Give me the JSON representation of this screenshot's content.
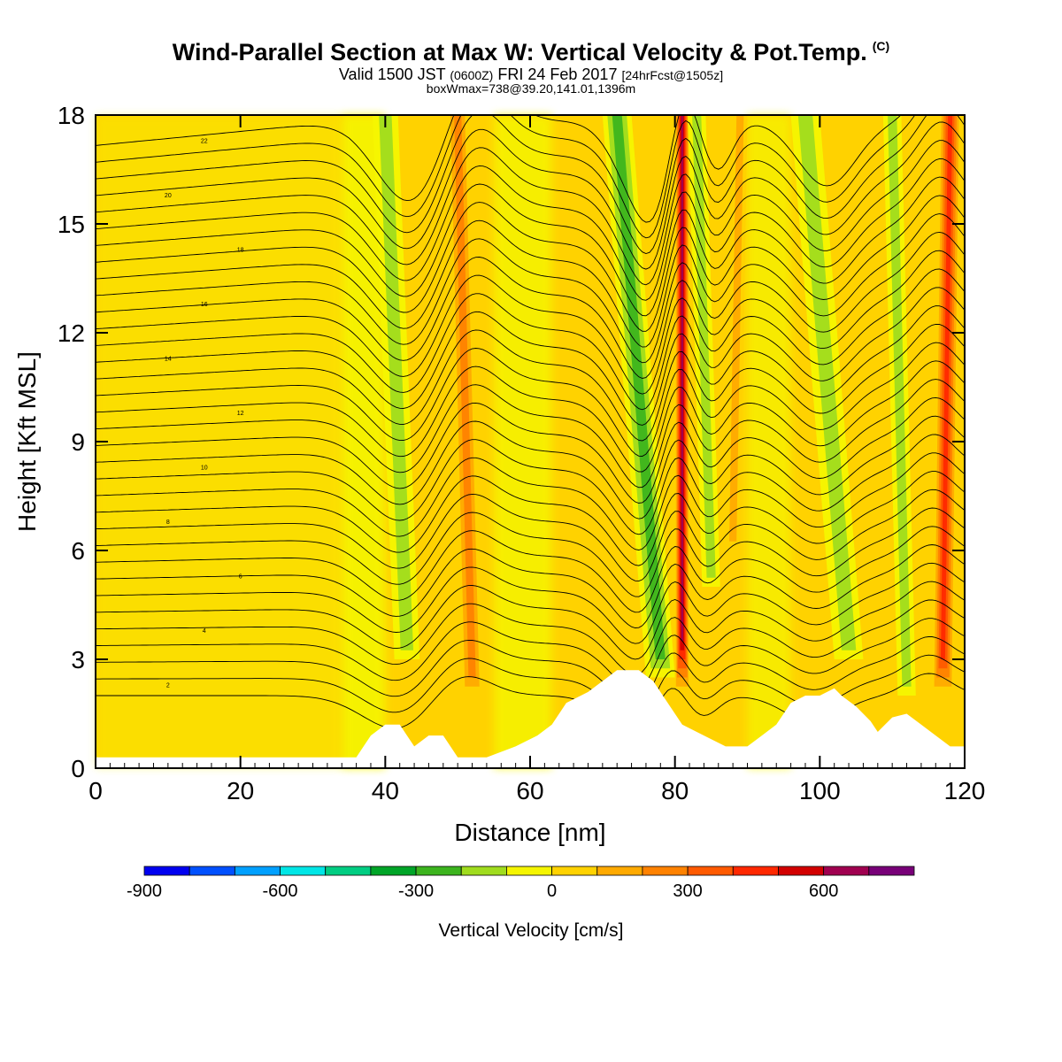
{
  "header": {
    "title": "Wind-Parallel Section at Max W: Vertical Velocity & Pot.Temp.",
    "title_mark": "(C)",
    "valid_prefix": "Valid 1500 JST",
    "valid_utc": "(0600Z)",
    "valid_date": "FRI 24 Feb 2017",
    "forecast": "[24hrFcst@1505z]",
    "boxinfo": "boxWmax=738@39.20,141.01,1396m"
  },
  "chart_data": {
    "type": "heatmap",
    "subtype": "cross-section with filled contours and isentropes",
    "xlabel": "Distance [nm]",
    "ylabel": "Height [Kft MSL]",
    "xlim": [
      0,
      120
    ],
    "ylim": [
      0,
      18
    ],
    "x_ticks": [
      0,
      20,
      40,
      60,
      80,
      100,
      120
    ],
    "y_ticks": [
      0,
      3,
      6,
      9,
      12,
      15,
      18
    ],
    "colorbar": {
      "title": "Vertical Velocity [cm/s]",
      "levels": [
        -900,
        -800,
        -700,
        -600,
        -500,
        -400,
        -300,
        -200,
        -100,
        0,
        100,
        200,
        300,
        400,
        500,
        600,
        700,
        800
      ],
      "tick_labels": [
        "-900",
        "-600",
        "-300",
        "0",
        "300",
        "600"
      ],
      "tick_values": [
        -900,
        -600,
        -300,
        0,
        300,
        600
      ],
      "colors": [
        "#0000f0",
        "#0050ff",
        "#00a0ff",
        "#00e6e6",
        "#00cd82",
        "#00a528",
        "#3cb41e",
        "#a0dc1e",
        "#f5f500",
        "#ffd200",
        "#ffaa00",
        "#ff8200",
        "#ff5a00",
        "#ff2800",
        "#d20000",
        "#a00050",
        "#780078"
      ]
    },
    "terrain": [
      [
        0,
        0.3
      ],
      [
        5,
        0.3
      ],
      [
        10,
        0.3
      ],
      [
        15,
        0.3
      ],
      [
        20,
        0.3
      ],
      [
        25,
        0.3
      ],
      [
        30,
        0.3
      ],
      [
        34,
        0.3
      ],
      [
        36,
        0.3
      ],
      [
        37,
        0.6
      ],
      [
        38,
        0.9
      ],
      [
        40,
        1.2
      ],
      [
        42,
        1.2
      ],
      [
        43,
        0.9
      ],
      [
        44,
        0.6
      ],
      [
        46,
        0.9
      ],
      [
        48,
        0.9
      ],
      [
        49,
        0.6
      ],
      [
        50,
        0.3
      ],
      [
        54,
        0.3
      ],
      [
        58,
        0.6
      ],
      [
        61,
        0.9
      ],
      [
        63,
        1.2
      ],
      [
        65,
        1.8
      ],
      [
        68,
        2.1
      ],
      [
        70,
        2.4
      ],
      [
        72,
        2.7
      ],
      [
        75,
        2.7
      ],
      [
        77,
        2.4
      ],
      [
        79,
        1.8
      ],
      [
        80,
        1.5
      ],
      [
        81,
        1.2
      ],
      [
        84,
        0.9
      ],
      [
        87,
        0.6
      ],
      [
        90,
        0.6
      ],
      [
        92,
        0.9
      ],
      [
        94,
        1.2
      ],
      [
        96,
        1.8
      ],
      [
        98,
        2.0
      ],
      [
        100,
        2.0
      ],
      [
        102,
        2.2
      ],
      [
        103,
        2.0
      ],
      [
        105,
        1.7
      ],
      [
        107,
        1.3
      ],
      [
        108,
        1.0
      ],
      [
        110,
        1.4
      ],
      [
        112,
        1.5
      ],
      [
        114,
        1.2
      ],
      [
        116,
        0.9
      ],
      [
        118,
        0.6
      ],
      [
        120,
        0.6
      ]
    ],
    "velocity_bands": [
      {
        "name": "down-42",
        "x_bottom": 43,
        "x_top": 40,
        "y_bottom": 3,
        "width": 3.5,
        "value": -200
      },
      {
        "name": "up-52",
        "x_bottom": 52,
        "x_top": 50,
        "y_bottom": 2,
        "width": 3.0,
        "value": 250
      },
      {
        "name": "down-78",
        "x_bottom": 78,
        "x_top": 72,
        "y_bottom": 2.5,
        "width": 4.0,
        "value": -300
      },
      {
        "name": "up-81",
        "x_bottom": 81,
        "x_top": 81,
        "y_bottom": 2.0,
        "width": 2.0,
        "value": 700
      },
      {
        "name": "down-85",
        "x_bottom": 85,
        "x_top": 83,
        "y_bottom": 5,
        "width": 2.5,
        "value": -150
      },
      {
        "name": "up-88",
        "x_bottom": 88,
        "x_top": 89,
        "y_bottom": 6,
        "width": 2.0,
        "value": 150
      },
      {
        "name": "down-103",
        "x_bottom": 104,
        "x_top": 98,
        "y_bottom": 3,
        "width": 4.0,
        "value": -200
      },
      {
        "name": "up-117",
        "x_bottom": 117,
        "x_top": 118,
        "y_bottom": 2,
        "width": 3.0,
        "value": 450
      },
      {
        "name": "down-112",
        "x_bottom": 112,
        "x_top": 110,
        "y_bottom": 2,
        "width": 2.5,
        "value": -150
      }
    ],
    "isentrope_levels": [
      2,
      4,
      6,
      8,
      10,
      12,
      14,
      16,
      18,
      20,
      22
    ],
    "isentrope_label_values": [
      "2",
      "4",
      "6",
      "8",
      "10",
      "12",
      "14",
      "16",
      "18",
      "20",
      "22"
    ]
  }
}
